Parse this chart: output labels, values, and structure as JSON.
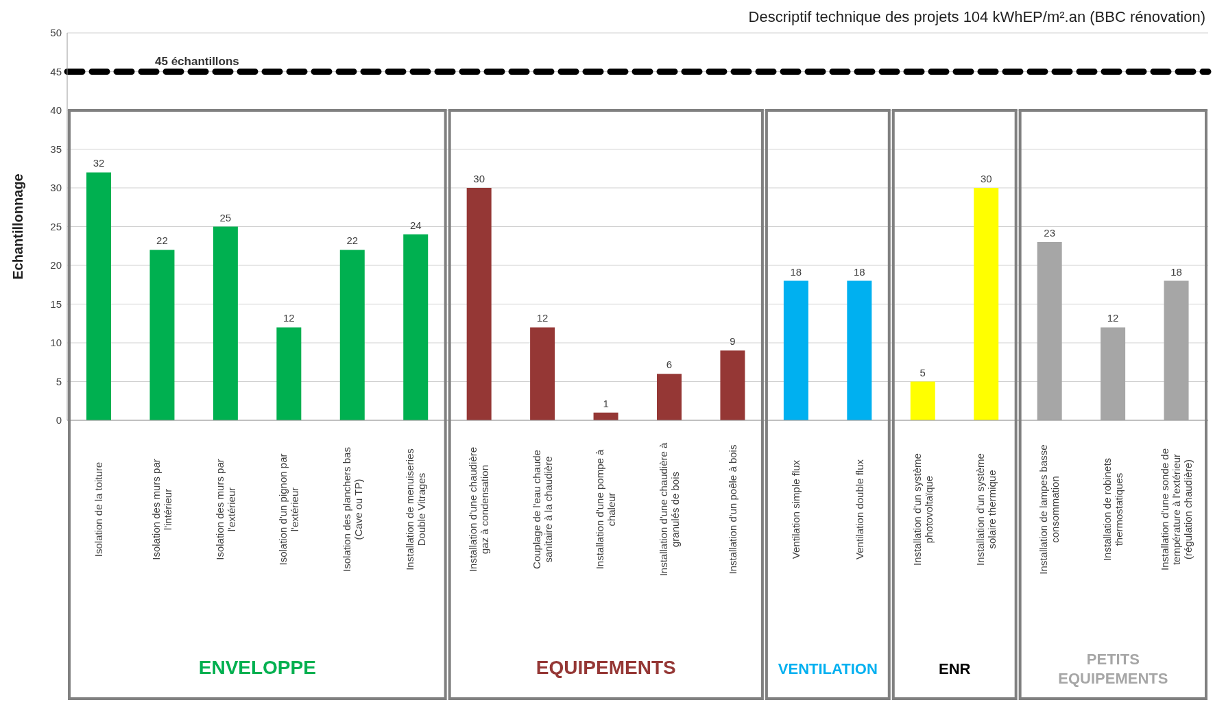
{
  "chart_data": {
    "type": "bar",
    "title": "Descriptif technique des projets 104 kWhEP/m².an (BBC rénovation)",
    "ylabel": "Echantillonnage",
    "categories": [
      "Isolation de la toiture",
      "Isolation des murs par l'intérieur",
      "Isolation des murs par l'extérieur",
      "Isolation d'un pignon par l'extérieur",
      "Isolation des planchers bas (Cave ou TP)",
      "Installation de menuiseries Double Vitrages",
      "Installation d'une chaudière gaz à condensation",
      "Couplage de l'eau chaude sanitaire à la chaudière",
      "Installation d'une pompe à chaleur",
      "Installation d'une chaudière à granulés de bois",
      "Installation d'un poêle à bois",
      "Ventilation simple flux",
      "Ventilation double flux",
      "Installation d'un système photovoltaïque",
      "Installation d'un système solaire thermique",
      "Installation de lampes basse consommation",
      "Installation de robinets thermostatiques",
      "Installation d'une sonde de température à l'extérieur (régulation chaudière)"
    ],
    "values": [
      32,
      22,
      25,
      12,
      22,
      24,
      30,
      12,
      1,
      6,
      9,
      18,
      18,
      5,
      30,
      23,
      12,
      18
    ],
    "colors": [
      "#00b050",
      "#00b050",
      "#00b050",
      "#00b050",
      "#00b050",
      "#00b050",
      "#953735",
      "#953735",
      "#953735",
      "#953735",
      "#953735",
      "#00b0f0",
      "#00b0f0",
      "#ffff00",
      "#ffff00",
      "#a6a6a6",
      "#a6a6a6",
      "#a6a6a6"
    ],
    "data_labels": true,
    "ylim": [
      0,
      50
    ],
    "yticks": [
      0,
      5,
      10,
      15,
      20,
      25,
      30,
      35,
      40,
      45,
      50
    ],
    "grid": "y",
    "ref_lines": [
      {
        "axis": "y",
        "value": 45,
        "label": "45 échantillons",
        "color": "#000000",
        "line_style": "dashed"
      }
    ],
    "annotations": [
      "ENVELOPPE",
      "EQUIPEMENTS",
      "VENTILATION",
      "ENR",
      "PETITS EQUIPEMENTS"
    ]
  }
}
